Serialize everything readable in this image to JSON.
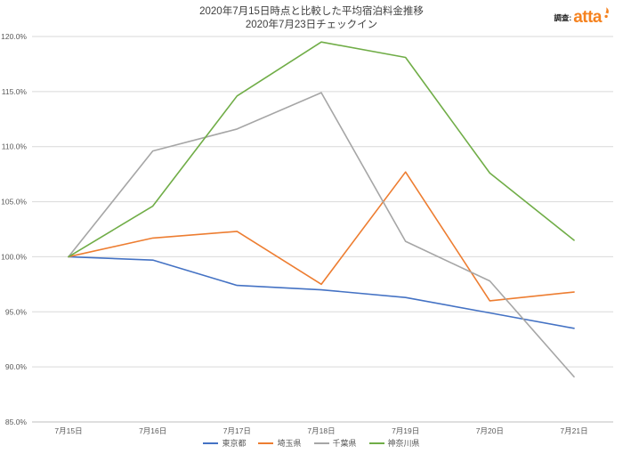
{
  "header": {
    "survey_label": "調査:",
    "brand": "atta"
  },
  "chart_data": {
    "type": "line",
    "title": "2020年7月15日時点と比較した平均宿泊料金推移",
    "subtitle": "2020年7月23日チェックイン",
    "x": [
      "7月15日",
      "7月16日",
      "7月17日",
      "7月18日",
      "7月19日",
      "7月20日",
      "7月21日"
    ],
    "series": [
      {
        "name": "東京都",
        "color": "#4472C4",
        "values": [
          100.0,
          99.7,
          97.4,
          97.0,
          96.3,
          94.9,
          93.5
        ]
      },
      {
        "name": "埼玉県",
        "color": "#ED7D31",
        "values": [
          100.0,
          101.7,
          102.3,
          97.5,
          107.7,
          96.0,
          96.8
        ]
      },
      {
        "name": "千葉県",
        "color": "#A6A6A6",
        "values": [
          100.0,
          109.6,
          111.6,
          114.9,
          101.4,
          97.8,
          89.1
        ]
      },
      {
        "name": "神奈川県",
        "color": "#70AD47",
        "values": [
          100.0,
          104.6,
          114.6,
          119.5,
          118.1,
          107.6,
          101.5
        ]
      }
    ],
    "ylim": [
      85,
      120
    ],
    "ytick_step": 5,
    "ytick_format": "percent_one_decimal",
    "grid": true,
    "legend_position": "bottom",
    "xlabel": "",
    "ylabel": ""
  },
  "brand_color": "#F5821F"
}
